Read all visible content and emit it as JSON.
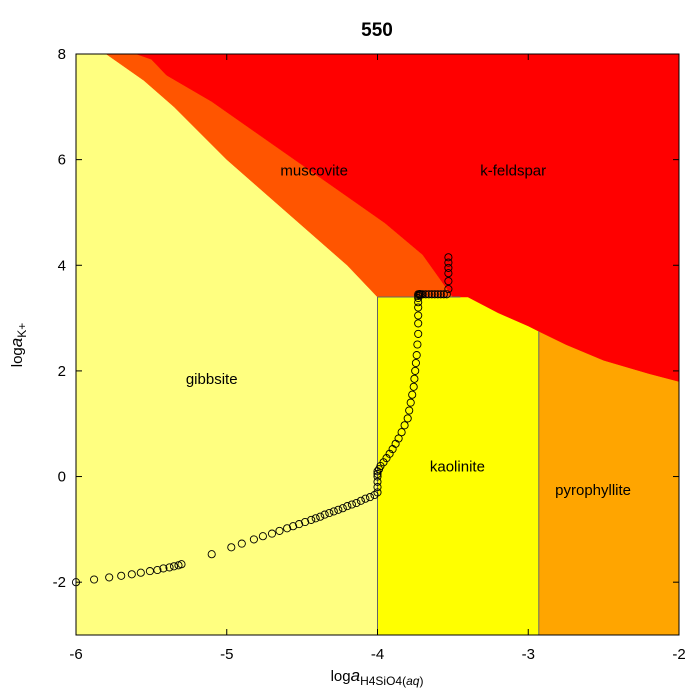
{
  "chart_data": {
    "type": "scatter",
    "title": "550",
    "xlabel": {
      "prefix": "log",
      "italic": "a",
      "sub": "H4SiO4(",
      "sub_italic": "aq",
      "sub_end": ")"
    },
    "ylabel": {
      "prefix": "log",
      "italic": "a",
      "sub": "K+"
    },
    "xlim": [
      -6,
      -2
    ],
    "ylim": [
      -3,
      8
    ],
    "xticks": [
      -6,
      -5,
      -4,
      -3,
      -2
    ],
    "yticks": [
      -2,
      0,
      2,
      4,
      6,
      8
    ],
    "xtick_labels": [
      "-6",
      "-5",
      "-4",
      "-3",
      "-2"
    ],
    "ytick_labels": [
      "-2",
      "0",
      "2",
      "4",
      "6",
      "8"
    ],
    "grid": false,
    "legend": "none",
    "fields": [
      {
        "name": "gibbsite",
        "color": "#ffff80",
        "label_at": [
          -5.1,
          1.75
        ],
        "polygon": [
          [
            -6,
            -3
          ],
          [
            -4,
            -3
          ],
          [
            -4,
            3.4
          ],
          [
            -4.2,
            4.0
          ],
          [
            -4.6,
            5.0
          ],
          [
            -5.0,
            6.0
          ],
          [
            -5.35,
            7.0
          ],
          [
            -5.55,
            7.5
          ],
          [
            -5.8,
            8
          ],
          [
            -6,
            8
          ]
        ]
      },
      {
        "name": "kaolinite",
        "color": "#ffff00",
        "label_at": [
          -3.47,
          0.1
        ],
        "polygon": [
          [
            -4,
            -3
          ],
          [
            -2.93,
            -3
          ],
          [
            -2.93,
            2.75
          ],
          [
            -3.0,
            2.85
          ],
          [
            -3.2,
            3.1
          ],
          [
            -3.4,
            3.4
          ],
          [
            -4,
            3.4
          ]
        ]
      },
      {
        "name": "pyrophyllite",
        "color": "#ffa500",
        "label_at": [
          -2.57,
          -0.35
        ],
        "polygon": [
          [
            -2.93,
            -3
          ],
          [
            -2,
            -3
          ],
          [
            -2,
            1.8
          ],
          [
            -2.2,
            1.95
          ],
          [
            -2.5,
            2.2
          ],
          [
            -2.75,
            2.5
          ],
          [
            -2.93,
            2.75
          ]
        ]
      },
      {
        "name": "muscovite",
        "color": "#ff5500",
        "label_at": [
          -4.42,
          5.7
        ],
        "polygon": [
          [
            -4,
            3.4
          ],
          [
            -3.5,
            3.4
          ],
          [
            -3.7,
            4.2
          ],
          [
            -3.95,
            4.8
          ],
          [
            -4.3,
            5.5
          ],
          [
            -4.7,
            6.3
          ],
          [
            -5.1,
            7.1
          ],
          [
            -5.4,
            7.6
          ],
          [
            -5.5,
            7.9
          ],
          [
            -5.6,
            8
          ],
          [
            -5.8,
            8
          ],
          [
            -5.55,
            7.5
          ],
          [
            -5.35,
            7.0
          ],
          [
            -5.0,
            6.0
          ],
          [
            -4.6,
            5.0
          ],
          [
            -4.2,
            4.0
          ]
        ]
      },
      {
        "name": "k-feldspar",
        "color": "#ff0000",
        "label_at": [
          -3.1,
          5.7
        ],
        "polygon": [
          [
            -5.6,
            8
          ],
          [
            -2,
            8
          ],
          [
            -2,
            1.8
          ],
          [
            -2.2,
            1.95
          ],
          [
            -2.5,
            2.2
          ],
          [
            -2.75,
            2.5
          ],
          [
            -2.93,
            2.75
          ],
          [
            -3.0,
            2.85
          ],
          [
            -3.2,
            3.1
          ],
          [
            -3.4,
            3.4
          ],
          [
            -3.5,
            3.4
          ],
          [
            -3.7,
            4.2
          ],
          [
            -3.95,
            4.8
          ],
          [
            -4.3,
            5.5
          ],
          [
            -4.7,
            6.3
          ],
          [
            -5.1,
            7.1
          ],
          [
            -5.4,
            7.6
          ],
          [
            -5.5,
            7.9
          ]
        ]
      }
    ],
    "series": [
      {
        "marker": "open-circle",
        "color": "#000000",
        "x": [
          -6.0,
          -5.88,
          -5.78,
          -5.7,
          -5.63,
          -5.57,
          -5.51,
          -5.46,
          -5.42,
          -5.38,
          -5.35,
          -5.32,
          -5.3,
          -5.1,
          -4.97,
          -4.9,
          -4.82,
          -4.76,
          -4.7,
          -4.65,
          -4.6,
          -4.56,
          -4.52,
          -4.48,
          -4.44,
          -4.41,
          -4.38,
          -4.35,
          -4.32,
          -4.29,
          -4.26,
          -4.23,
          -4.2,
          -4.17,
          -4.14,
          -4.11,
          -4.08,
          -4.05,
          -4.02,
          -4.0,
          -4.0,
          -4.0,
          -4.0,
          -4.0,
          -4.0,
          -3.99,
          -3.98,
          -3.96,
          -3.94,
          -3.92,
          -3.9,
          -3.88,
          -3.86,
          -3.84,
          -3.82,
          -3.8,
          -3.79,
          -3.78,
          -3.77,
          -3.76,
          -3.755,
          -3.75,
          -3.745,
          -3.74,
          -3.735,
          -3.73,
          -3.73,
          -3.73,
          -3.73,
          -3.73,
          -3.73,
          -3.73,
          -3.73,
          -3.72,
          -3.72,
          -3.72,
          -3.72,
          -3.72,
          -3.71,
          -3.7,
          -3.68,
          -3.66,
          -3.64,
          -3.62,
          -3.6,
          -3.58,
          -3.56,
          -3.54,
          -3.53,
          -3.53,
          -3.53,
          -3.53,
          -3.53,
          -3.53
        ],
        "y": [
          -2.0,
          -1.95,
          -1.91,
          -1.88,
          -1.85,
          -1.82,
          -1.79,
          -1.77,
          -1.74,
          -1.72,
          -1.7,
          -1.68,
          -1.66,
          -1.47,
          -1.34,
          -1.27,
          -1.19,
          -1.13,
          -1.08,
          -1.03,
          -0.98,
          -0.94,
          -0.9,
          -0.86,
          -0.82,
          -0.79,
          -0.76,
          -0.72,
          -0.69,
          -0.66,
          -0.63,
          -0.6,
          -0.56,
          -0.53,
          -0.5,
          -0.46,
          -0.42,
          -0.39,
          -0.35,
          -0.3,
          -0.2,
          -0.1,
          0.0,
          0.05,
          0.1,
          0.14,
          0.2,
          0.27,
          0.35,
          0.43,
          0.52,
          0.62,
          0.72,
          0.84,
          0.97,
          1.1,
          1.25,
          1.4,
          1.55,
          1.7,
          1.85,
          2.0,
          2.15,
          2.3,
          2.5,
          2.7,
          2.9,
          3.05,
          3.2,
          3.3,
          3.38,
          3.42,
          3.45,
          3.45,
          3.45,
          3.45,
          3.45,
          3.45,
          3.45,
          3.45,
          3.45,
          3.45,
          3.45,
          3.45,
          3.45,
          3.45,
          3.45,
          3.45,
          3.55,
          3.7,
          3.85,
          3.95,
          4.05,
          4.15
        ]
      }
    ]
  }
}
